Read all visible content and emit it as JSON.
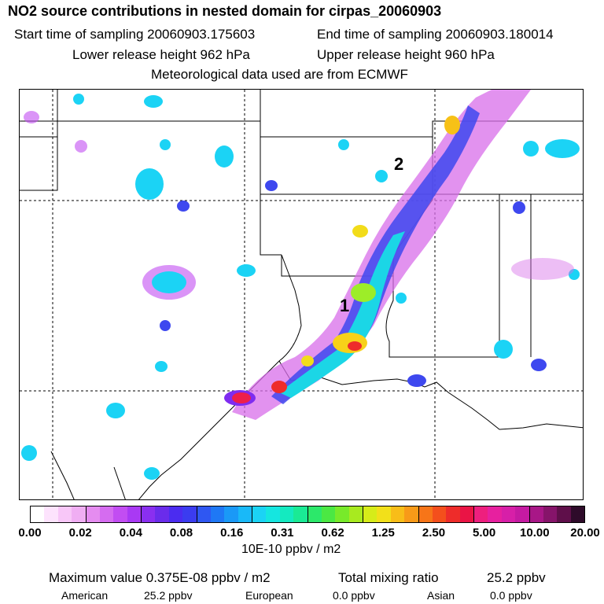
{
  "header": {
    "title": "NO2 source contributions in nested domain for cirpas_20060903",
    "start_label": "Start time of sampling 20060903.175603",
    "end_label": "End time of sampling 20060903.180014",
    "lower_label": "Lower release height  962 hPa",
    "upper_label": "Upper release height  960 hPa",
    "met_label": "Meteorological data used are from ECMWF"
  },
  "map": {
    "markers": [
      "1",
      "2"
    ]
  },
  "legend": {
    "colors": [
      "#ffffff",
      "#fde3fd",
      "#f8c7f8",
      "#f0aef3",
      "#e58cf0",
      "#d56cf0",
      "#c24df2",
      "#a939f4",
      "#8a2ff0",
      "#6a2ceb",
      "#4b2cf0",
      "#3b3cf0",
      "#2f57f2",
      "#1f78f5",
      "#1a99f7",
      "#19b9f8",
      "#1bd3f5",
      "#15e6e0",
      "#14eac0",
      "#1aea95",
      "#2ce86a",
      "#4be843",
      "#78ea2a",
      "#a8ea1f",
      "#d6ec19",
      "#f2e01a",
      "#f8bd18",
      "#f89a18",
      "#f77518",
      "#f44f1c",
      "#ee2c2a",
      "#ea1445",
      "#ee1f7e",
      "#e7209f",
      "#d71fa8",
      "#c51aa2",
      "#a81787",
      "#86146a",
      "#5f0f4a",
      "#2e0b2a"
    ],
    "tick_labels": [
      "0.00",
      "0.02",
      "0.04",
      "0.08",
      "0.16",
      "0.31",
      "0.62",
      "1.25",
      "2.50",
      "5.00",
      "10.00",
      "20.00"
    ],
    "units": "10E-10 ppbv / m2"
  },
  "stats": {
    "max_label": "Maximum value  0.375E-08 ppbv / m2",
    "total_label": "Total mixing ratio",
    "total_value": "25.2 ppbv",
    "american_label": "American",
    "american_value": "25.2 ppbv",
    "european_label": "European",
    "european_value": "0.0 ppbv",
    "asian_label": "Asian",
    "asian_value": "0.0 ppbv"
  }
}
